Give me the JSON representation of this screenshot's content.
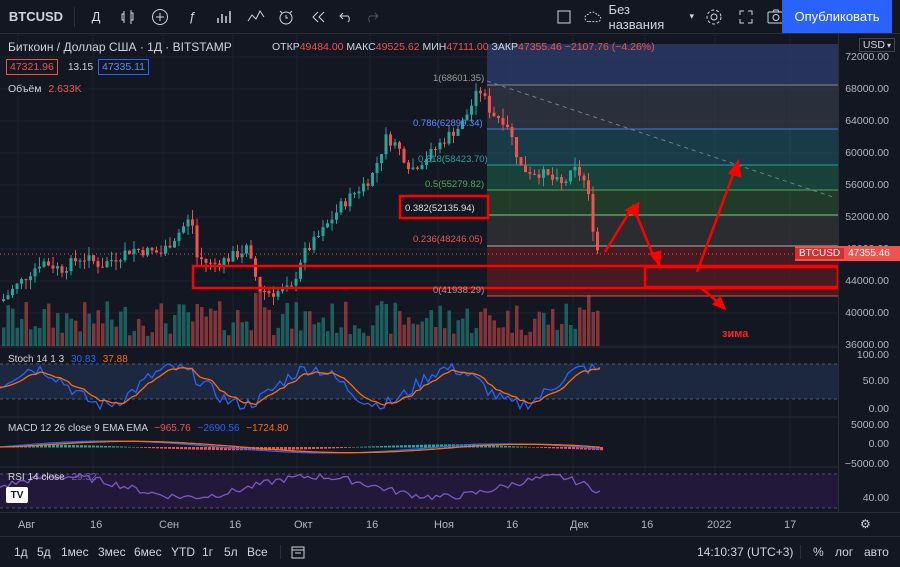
{
  "toolbar": {
    "symbol": "BTCUSD",
    "interval": "Д",
    "layout_name": "Без названия",
    "publish_label": "Опубликовать"
  },
  "legend": {
    "title": "Биткоин / Доллар США · 1Д · BITSTAMP",
    "open_label": "ОТКР",
    "open": "49484.00",
    "high_label": "МАКС",
    "high": "49525.62",
    "low_label": "МИН",
    "low": "47111.00",
    "close_label": "ЗАКР",
    "close": "47355.46",
    "change": "−2107.76 (−4.26%)",
    "bid": "47321.96",
    "spread": "13.15",
    "ask": "47335.11",
    "volume_label": "Объём",
    "volume": "2.633K",
    "currency": "USD"
  },
  "fib_levels": [
    {
      "label": "1(68601.35)"
    },
    {
      "label": "0.786(62899.34)"
    },
    {
      "label": "0.618(58423.70)"
    },
    {
      "label": "0.5(55279.82)"
    },
    {
      "label": "0.382(52135.94)"
    },
    {
      "label": "0.236(48246.05)"
    },
    {
      "label": "0(41938.29)"
    }
  ],
  "annotation": "зима",
  "price_tag": {
    "symbol": "BTCUSD",
    "value": "47355.46"
  },
  "price_axis": [
    "72000.00",
    "68000.00",
    "64000.00",
    "60000.00",
    "56000.00",
    "52000.00",
    "48000.00",
    "44000.00",
    "40000.00",
    "36000.00"
  ],
  "stoch": {
    "label": "Stoch 14 1 3",
    "k": "30.83",
    "d": "37.88",
    "axis": [
      "100.00",
      "50.00",
      "0.00"
    ]
  },
  "macd": {
    "label": "MACD 12 26 close 9 EMA EMA",
    "hist": "−965.76",
    "macd": "−2690.56",
    "signal": "−1724.80",
    "axis": [
      "5000.00",
      "0.00",
      "−5000.00"
    ]
  },
  "rsi": {
    "label": "RSI 14 close",
    "value": "29.32",
    "axis": [
      "40.00"
    ]
  },
  "time_axis": [
    "Авг",
    "16",
    "Сен",
    "16",
    "Окт",
    "16",
    "Ноя",
    "16",
    "Дек",
    "16",
    "2022",
    "17"
  ],
  "ranges": [
    "1д",
    "5д",
    "1мес",
    "3мес",
    "6мес",
    "YTD",
    "1г",
    "5л",
    "Все"
  ],
  "clock": "14:10:37 (UTC+3)",
  "bottom_right": [
    "%",
    "лог",
    "авто"
  ],
  "colors": {
    "up": "#26a69a",
    "down": "#ef5350",
    "accent": "#2962ff",
    "red_annotation": "#ff0000"
  }
}
